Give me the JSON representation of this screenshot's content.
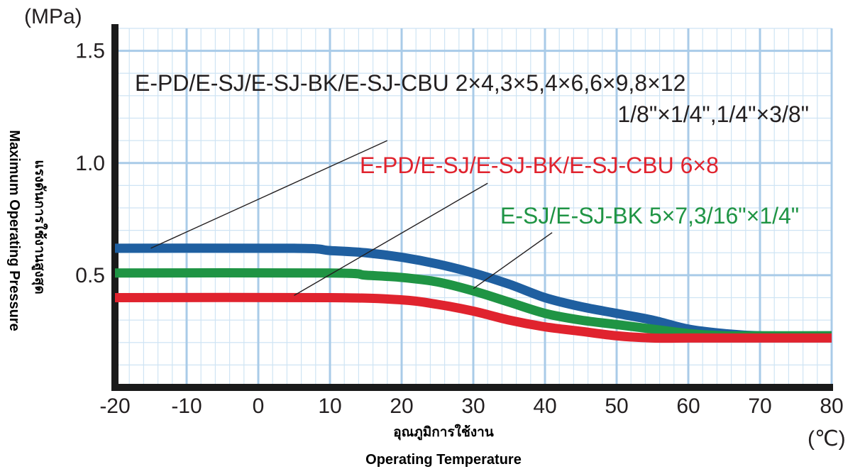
{
  "chart_data": {
    "type": "line",
    "y_unit": "(MPa)",
    "x_unit": "(℃)",
    "ylabel_th": "แรงดันการใช้งานสูงสุด",
    "ylabel_en": "Maximum Operating Pressure",
    "xlabel_th": "อุณภูมิการใช้งาน",
    "xlabel_en": "Operating Temperature",
    "xlim": [
      -20,
      80
    ],
    "ylim": [
      0,
      1.6
    ],
    "x_ticks": [
      "-20",
      "-10",
      "0",
      "10",
      "20",
      "30",
      "40",
      "50",
      "60",
      "70",
      "80"
    ],
    "x_tick_values": [
      -20,
      -10,
      0,
      10,
      20,
      30,
      40,
      50,
      60,
      70,
      80
    ],
    "y_ticks": [
      "0.5",
      "1.0",
      "1.5"
    ],
    "y_tick_values": [
      0.5,
      1.0,
      1.5
    ],
    "grid": true,
    "series": [
      {
        "label_lines": [
          "E-PD/E-SJ/E-SJ-BK/E-SJ-CBU 2×4,3×5,4×6,6×9,8×12",
          "1/8\"×1/4\",1/4\"×3/8\""
        ],
        "color": "#1f5fa0",
        "x": [
          -20,
          5,
          10,
          15,
          20,
          25,
          30,
          35,
          40,
          45,
          50,
          55,
          60,
          65,
          70,
          80
        ],
        "values": [
          0.62,
          0.62,
          0.61,
          0.6,
          0.58,
          0.55,
          0.51,
          0.46,
          0.4,
          0.36,
          0.33,
          0.3,
          0.26,
          0.24,
          0.23,
          0.23
        ]
      },
      {
        "label_lines": [
          "E-PD/E-SJ/E-SJ-BK/E-SJ-CBU 6×8"
        ],
        "color": "#e0232e",
        "x": [
          -20,
          10,
          20,
          25,
          30,
          35,
          40,
          45,
          50,
          55,
          60,
          70,
          80
        ],
        "values": [
          0.4,
          0.4,
          0.39,
          0.37,
          0.34,
          0.3,
          0.27,
          0.25,
          0.23,
          0.22,
          0.22,
          0.22,
          0.22
        ]
      },
      {
        "label_lines": [
          "E-SJ/E-SJ-BK 5×7,3/16\"×1/4\""
        ],
        "color": "#1f9444",
        "x": [
          -20,
          10,
          15,
          20,
          25,
          30,
          35,
          40,
          45,
          50,
          55,
          60,
          65,
          70,
          80
        ],
        "values": [
          0.51,
          0.51,
          0.5,
          0.49,
          0.47,
          0.43,
          0.38,
          0.33,
          0.3,
          0.28,
          0.26,
          0.24,
          0.23,
          0.23,
          0.23
        ]
      }
    ],
    "leader_lines": [
      {
        "series": 0,
        "from": [
          -15,
          0.62
        ],
        "to": [
          18,
          1.1
        ]
      },
      {
        "series": 1,
        "from": [
          5,
          0.41
        ],
        "to": [
          32,
          0.91
        ]
      },
      {
        "series": 2,
        "from": [
          30,
          0.44
        ],
        "to": [
          41,
          0.69
        ]
      }
    ]
  }
}
